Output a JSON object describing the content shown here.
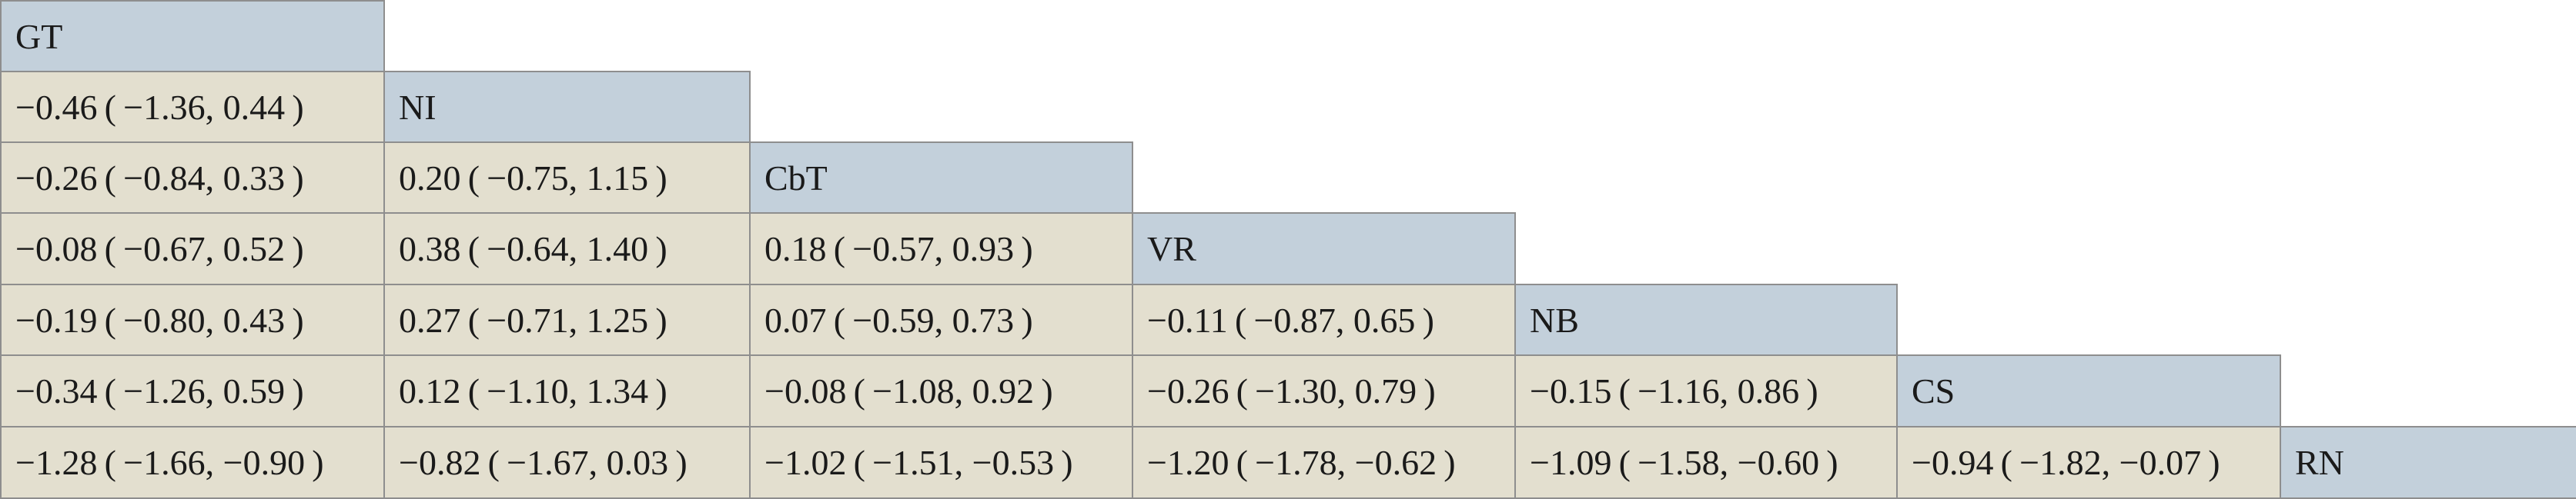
{
  "treatments": [
    "GT",
    "NI",
    "CbT",
    "VR",
    "NB",
    "CS",
    "RN"
  ],
  "rows": [
    [],
    [
      "−0.46 ( −1.36, 0.44 )"
    ],
    [
      "−0.26 ( −0.84, 0.33 )",
      "0.20 ( −0.75, 1.15 )"
    ],
    [
      "−0.08 ( −0.67, 0.52 )",
      "0.38 ( −0.64, 1.40 )",
      "0.18 ( −0.57, 0.93 )"
    ],
    [
      "−0.19 ( −0.80, 0.43 )",
      "0.27 ( −0.71, 1.25 )",
      "0.07 ( −0.59, 0.73 )",
      "−0.11 ( −0.87, 0.65 )"
    ],
    [
      "−0.34 ( −1.26, 0.59 )",
      "0.12 ( −1.10, 1.34 )",
      "−0.08 ( −1.08, 0.92 )",
      "−0.26 ( −1.30, 0.79 )",
      "−0.15 ( −1.16, 0.86 )"
    ],
    [
      "−1.28 ( −1.66, −0.90 )",
      "−0.82 ( −1.67, 0.03 )",
      "−1.02 ( −1.51, −0.53 )",
      "−1.20 ( −1.78, −0.62 )",
      "−1.09 ( −1.58, −0.60 )",
      "−0.94 ( −1.82, −0.07 )"
    ]
  ],
  "colors": {
    "header_fill": "#c3d0db",
    "value_fill": "#e3dfcf",
    "border": "#8e8e8e"
  }
}
